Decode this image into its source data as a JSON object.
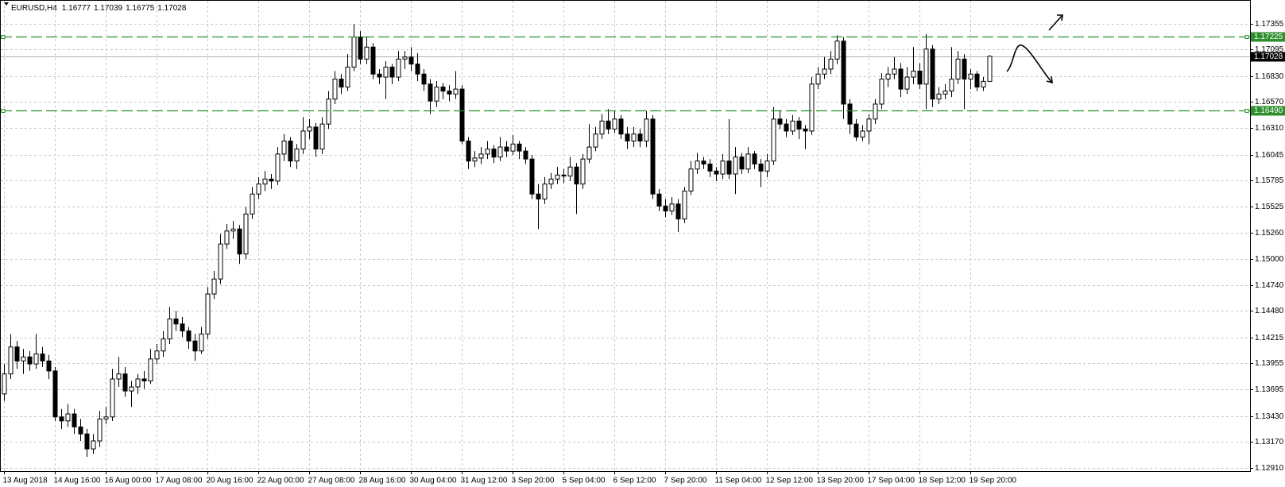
{
  "chart_data": {
    "type": "candlestick",
    "title": "EURUSD,H4",
    "categories": [
      "13 Aug 2018",
      null,
      null,
      null,
      null,
      null,
      null,
      null,
      "14 Aug 16:00",
      null,
      null,
      null,
      null,
      null,
      null,
      null,
      "16 Aug 00:00",
      null,
      null,
      null,
      null,
      null,
      null,
      null,
      "17 Aug 08:00",
      null,
      null,
      null,
      null,
      null,
      null,
      null,
      "20 Aug 16:00",
      null,
      null,
      null,
      null,
      null,
      null,
      null,
      "22 Aug 00:00",
      null,
      null,
      null,
      null,
      null,
      null,
      null,
      "27 Aug 08:00",
      null,
      null,
      null,
      null,
      null,
      null,
      null,
      "28 Aug 16:00",
      null,
      null,
      null,
      null,
      null,
      null,
      null,
      "30 Aug 04:00",
      null,
      null,
      null,
      null,
      null,
      null,
      null,
      "31 Aug 12:00",
      null,
      null,
      null,
      null,
      null,
      null,
      null,
      "3 Sep 20:00",
      null,
      null,
      null,
      null,
      null,
      null,
      null,
      "5 Sep 04:00",
      null,
      null,
      null,
      null,
      null,
      null,
      null,
      "6 Sep 12:00",
      null,
      null,
      null,
      null,
      null,
      null,
      null,
      "7 Sep 20:00",
      null,
      null,
      null,
      null,
      null,
      null,
      null,
      "11 Sep 04:00",
      null,
      null,
      null,
      null,
      null,
      null,
      null,
      "12 Sep 12:00",
      null,
      null,
      null,
      null,
      null,
      null,
      null,
      "13 Sep 20:00",
      null,
      null,
      null,
      null,
      null,
      null,
      null,
      "17 Sep 04:00",
      null,
      null,
      null,
      null,
      null,
      null,
      null,
      "18 Sep 12:00",
      null,
      null,
      null,
      null,
      null,
      null,
      null,
      "19 Sep 20:00",
      null,
      null,
      null
    ],
    "ohlc": [
      [
        1.1365,
        1.1395,
        1.1358,
        1.1385
      ],
      [
        1.1385,
        1.1425,
        1.138,
        1.1412
      ],
      [
        1.1412,
        1.1418,
        1.139,
        1.1398
      ],
      [
        1.1398,
        1.141,
        1.1385,
        1.1402
      ],
      [
        1.1402,
        1.1408,
        1.1388,
        1.1395
      ],
      [
        1.1395,
        1.1425,
        1.139,
        1.1405
      ],
      [
        1.1405,
        1.1412,
        1.1392,
        1.1398
      ],
      [
        1.1398,
        1.1404,
        1.138,
        1.1388
      ],
      [
        1.1388,
        1.1392,
        1.1338,
        1.1342
      ],
      [
        1.1342,
        1.135,
        1.133,
        1.1338
      ],
      [
        1.1338,
        1.1355,
        1.1332,
        1.1345
      ],
      [
        1.1345,
        1.135,
        1.1325,
        1.1332
      ],
      [
        1.1332,
        1.134,
        1.1318,
        1.1325
      ],
      [
        1.1325,
        1.133,
        1.1302,
        1.131
      ],
      [
        1.131,
        1.1325,
        1.1305,
        1.1318
      ],
      [
        1.1318,
        1.1348,
        1.1312,
        1.134
      ],
      [
        1.134,
        1.1352,
        1.1335,
        1.1342
      ],
      [
        1.1342,
        1.139,
        1.1338,
        1.138
      ],
      [
        1.138,
        1.1402,
        1.1372,
        1.1385
      ],
      [
        1.1385,
        1.1392,
        1.1362,
        1.1368
      ],
      [
        1.1368,
        1.1378,
        1.1352,
        1.1372
      ],
      [
        1.1372,
        1.1385,
        1.1365,
        1.138
      ],
      [
        1.138,
        1.1388,
        1.137,
        1.1378
      ],
      [
        1.1378,
        1.141,
        1.1375,
        1.14
      ],
      [
        1.14,
        1.1415,
        1.1395,
        1.1408
      ],
      [
        1.1408,
        1.1428,
        1.1402,
        1.142
      ],
      [
        1.142,
        1.1452,
        1.1415,
        1.144
      ],
      [
        1.144,
        1.1448,
        1.1428,
        1.1435
      ],
      [
        1.1435,
        1.1442,
        1.1422,
        1.1428
      ],
      [
        1.1428,
        1.1432,
        1.141,
        1.1418
      ],
      [
        1.1418,
        1.1425,
        1.1398,
        1.1408
      ],
      [
        1.1408,
        1.1432,
        1.1405,
        1.1425
      ],
      [
        1.1425,
        1.1472,
        1.142,
        1.1465
      ],
      [
        1.1465,
        1.1488,
        1.146,
        1.148
      ],
      [
        1.148,
        1.1525,
        1.1475,
        1.1515
      ],
      [
        1.1515,
        1.1535,
        1.151,
        1.1528
      ],
      [
        1.1528,
        1.1538,
        1.152,
        1.153
      ],
      [
        1.153,
        1.1534,
        1.1495,
        1.1505
      ],
      [
        1.1505,
        1.1552,
        1.15,
        1.1545
      ],
      [
        1.1545,
        1.1572,
        1.154,
        1.1565
      ],
      [
        1.1565,
        1.1582,
        1.156,
        1.1575
      ],
      [
        1.1575,
        1.1588,
        1.1568,
        1.158
      ],
      [
        1.158,
        1.1585,
        1.157,
        1.1578
      ],
      [
        1.1578,
        1.1612,
        1.1574,
        1.1605
      ],
      [
        1.1605,
        1.1625,
        1.1598,
        1.1618
      ],
      [
        1.1618,
        1.1622,
        1.1592,
        1.1598
      ],
      [
        1.1598,
        1.1615,
        1.159,
        1.161
      ],
      [
        1.161,
        1.1642,
        1.1605,
        1.1628
      ],
      [
        1.1628,
        1.164,
        1.162,
        1.1632
      ],
      [
        1.1632,
        1.1636,
        1.1602,
        1.161
      ],
      [
        1.161,
        1.1642,
        1.1605,
        1.1635
      ],
      [
        1.1635,
        1.1668,
        1.163,
        1.166
      ],
      [
        1.166,
        1.1688,
        1.1655,
        1.168
      ],
      [
        1.168,
        1.1685,
        1.1665,
        1.1672
      ],
      [
        1.1672,
        1.1705,
        1.1668,
        1.1692
      ],
      [
        1.1692,
        1.1735,
        1.1688,
        1.1722
      ],
      [
        1.1722,
        1.1728,
        1.1695,
        1.17
      ],
      [
        1.17,
        1.1722,
        1.1695,
        1.1712
      ],
      [
        1.1712,
        1.1716,
        1.168,
        1.1685
      ],
      [
        1.1685,
        1.169,
        1.1675,
        1.1682
      ],
      [
        1.1682,
        1.1698,
        1.166,
        1.1692
      ],
      [
        1.1692,
        1.1695,
        1.1675,
        1.1682
      ],
      [
        1.1682,
        1.1708,
        1.1678,
        1.17
      ],
      [
        1.17,
        1.1708,
        1.169,
        1.1702
      ],
      [
        1.1702,
        1.1712,
        1.1688,
        1.1695
      ],
      [
        1.1695,
        1.1706,
        1.1678,
        1.1685
      ],
      [
        1.1685,
        1.169,
        1.1668,
        1.1675
      ],
      [
        1.1675,
        1.168,
        1.1645,
        1.1658
      ],
      [
        1.1658,
        1.1678,
        1.1652,
        1.1672
      ],
      [
        1.1672,
        1.1676,
        1.166,
        1.1668
      ],
      [
        1.1668,
        1.1674,
        1.1658,
        1.1665
      ],
      [
        1.1665,
        1.1688,
        1.166,
        1.167
      ],
      [
        1.167,
        1.1674,
        1.1615,
        1.1618
      ],
      [
        1.1618,
        1.1622,
        1.159,
        1.1598
      ],
      [
        1.1598,
        1.1608,
        1.1592,
        1.1601
      ],
      [
        1.1601,
        1.1612,
        1.1595,
        1.1605
      ],
      [
        1.1605,
        1.1618,
        1.16,
        1.161
      ],
      [
        1.161,
        1.1614,
        1.1596,
        1.1602
      ],
      [
        1.1602,
        1.1622,
        1.1598,
        1.1612
      ],
      [
        1.1612,
        1.1618,
        1.1602,
        1.1608
      ],
      [
        1.1608,
        1.1624,
        1.1604,
        1.1615
      ],
      [
        1.1615,
        1.1618,
        1.16,
        1.1608
      ],
      [
        1.1608,
        1.1612,
        1.1595,
        1.16
      ],
      [
        1.16,
        1.1604,
        1.156,
        1.1565
      ],
      [
        1.1565,
        1.1575,
        1.153,
        1.156
      ],
      [
        1.156,
        1.1582,
        1.1555,
        1.1575
      ],
      [
        1.1575,
        1.1586,
        1.157,
        1.158
      ],
      [
        1.158,
        1.1592,
        1.1575,
        1.1584
      ],
      [
        1.1584,
        1.159,
        1.1576,
        1.1583
      ],
      [
        1.1583,
        1.1602,
        1.1578,
        1.1592
      ],
      [
        1.1592,
        1.1596,
        1.1545,
        1.1575
      ],
      [
        1.1575,
        1.1605,
        1.157,
        1.16
      ],
      [
        1.16,
        1.1635,
        1.1596,
        1.1612
      ],
      [
        1.1612,
        1.1632,
        1.1608,
        1.1625
      ],
      [
        1.1625,
        1.1645,
        1.162,
        1.1638
      ],
      [
        1.1638,
        1.165,
        1.1625,
        1.163
      ],
      [
        1.163,
        1.1648,
        1.1626,
        1.164
      ],
      [
        1.164,
        1.1644,
        1.162,
        1.1625
      ],
      [
        1.1625,
        1.1632,
        1.161,
        1.1618
      ],
      [
        1.1618,
        1.1632,
        1.1612,
        1.1625
      ],
      [
        1.1625,
        1.163,
        1.1612,
        1.1618
      ],
      [
        1.1618,
        1.1648,
        1.1612,
        1.164
      ],
      [
        1.164,
        1.1644,
        1.156,
        1.1565
      ],
      [
        1.1565,
        1.157,
        1.1548,
        1.1553
      ],
      [
        1.1553,
        1.156,
        1.1542,
        1.1548
      ],
      [
        1.1548,
        1.1562,
        1.1544,
        1.1555
      ],
      [
        1.1555,
        1.156,
        1.1527,
        1.154
      ],
      [
        1.154,
        1.1572,
        1.1536,
        1.1568
      ],
      [
        1.1568,
        1.1598,
        1.1564,
        1.159
      ],
      [
        1.159,
        1.1606,
        1.1585,
        1.1598
      ],
      [
        1.1598,
        1.1602,
        1.159,
        1.1595
      ],
      [
        1.1595,
        1.16,
        1.1582,
        1.1588
      ],
      [
        1.1588,
        1.1592,
        1.1578,
        1.1585
      ],
      [
        1.1585,
        1.1605,
        1.158,
        1.1598
      ],
      [
        1.1598,
        1.164,
        1.158,
        1.1585
      ],
      [
        1.1585,
        1.1612,
        1.1565,
        1.1602
      ],
      [
        1.1602,
        1.1606,
        1.1585,
        1.159
      ],
      [
        1.159,
        1.1612,
        1.1586,
        1.1605
      ],
      [
        1.1605,
        1.1608,
        1.159,
        1.1595
      ],
      [
        1.1595,
        1.16,
        1.1572,
        1.1588
      ],
      [
        1.1588,
        1.1605,
        1.1582,
        1.1598
      ],
      [
        1.1598,
        1.1652,
        1.1594,
        1.164
      ],
      [
        1.164,
        1.1648,
        1.163,
        1.1635
      ],
      [
        1.1635,
        1.164,
        1.1622,
        1.1628
      ],
      [
        1.1628,
        1.1644,
        1.1624,
        1.1638
      ],
      [
        1.1638,
        1.1642,
        1.162,
        1.163
      ],
      [
        1.163,
        1.1634,
        1.161,
        1.1628
      ],
      [
        1.1628,
        1.1682,
        1.1624,
        1.1675
      ],
      [
        1.1675,
        1.1692,
        1.167,
        1.1685
      ],
      [
        1.1685,
        1.1702,
        1.168,
        1.169
      ],
      [
        1.169,
        1.1708,
        1.1685,
        1.17
      ],
      [
        1.17,
        1.1724,
        1.1695,
        1.1718
      ],
      [
        1.1718,
        1.1722,
        1.164,
        1.1655
      ],
      [
        1.1655,
        1.166,
        1.1625,
        1.1635
      ],
      [
        1.1635,
        1.164,
        1.1618,
        1.1622
      ],
      [
        1.1622,
        1.1634,
        1.1618,
        1.1628
      ],
      [
        1.1628,
        1.1645,
        1.1615,
        1.164
      ],
      [
        1.164,
        1.166,
        1.1635,
        1.1655
      ],
      [
        1.1655,
        1.1686,
        1.165,
        1.168
      ],
      [
        1.168,
        1.1692,
        1.1672,
        1.1685
      ],
      [
        1.1685,
        1.1702,
        1.168,
        1.169
      ],
      [
        1.169,
        1.1696,
        1.1662,
        1.167
      ],
      [
        1.167,
        1.1692,
        1.1665,
        1.1682
      ],
      [
        1.1682,
        1.1712,
        1.1675,
        1.1688
      ],
      [
        1.1688,
        1.1696,
        1.167,
        1.1675
      ],
      [
        1.1675,
        1.1725,
        1.165,
        1.171
      ],
      [
        1.171,
        1.1714,
        1.1652,
        1.166
      ],
      [
        1.166,
        1.1672,
        1.1655,
        1.1665
      ],
      [
        1.1665,
        1.1675,
        1.166,
        1.1668
      ],
      [
        1.1668,
        1.1712,
        1.1662,
        1.168
      ],
      [
        1.168,
        1.1708,
        1.1675,
        1.17
      ],
      [
        1.17,
        1.1705,
        1.165,
        1.168
      ],
      [
        1.168,
        1.169,
        1.167,
        1.1685
      ],
      [
        1.1685,
        1.1688,
        1.1668,
        1.1672
      ],
      [
        1.1672,
        1.1682,
        1.1668,
        1.16777
      ],
      [
        1.16777,
        1.17039,
        1.16775,
        1.17028
      ]
    ],
    "ylim": [
      1.12878,
      1.17591
    ],
    "yticks": [
      1.17355,
      1.17095,
      {
        "value": 1.1683,
        "label": "1.16830"
      },
      {
        "value": 1.1657,
        "label": "1.16570"
      },
      {
        "value": 1.1631,
        "label": "1.16310"
      },
      1.16045,
      1.15785,
      1.15525,
      {
        "value": 1.1526,
        "label": "1.15260"
      },
      {
        "value": 1.15,
        "label": "1.15000"
      },
      {
        "value": 1.1474,
        "label": "1.14740"
      },
      {
        "value": 1.1448,
        "label": "1.14480"
      },
      1.14215,
      1.13955,
      1.13695,
      {
        "value": 1.1343,
        "label": "1.13430"
      },
      {
        "value": 1.1317,
        "label": "1.13170"
      },
      {
        "value": 1.1291,
        "label": "1.12910"
      }
    ],
    "grid": true,
    "levels": [
      1.17225,
      {
        "value": 1.1649,
        "label": "1.16490"
      }
    ],
    "level_color": "#2f8f2f",
    "bull_color": "#ffffff",
    "bear_color": "#000000"
  }
}
